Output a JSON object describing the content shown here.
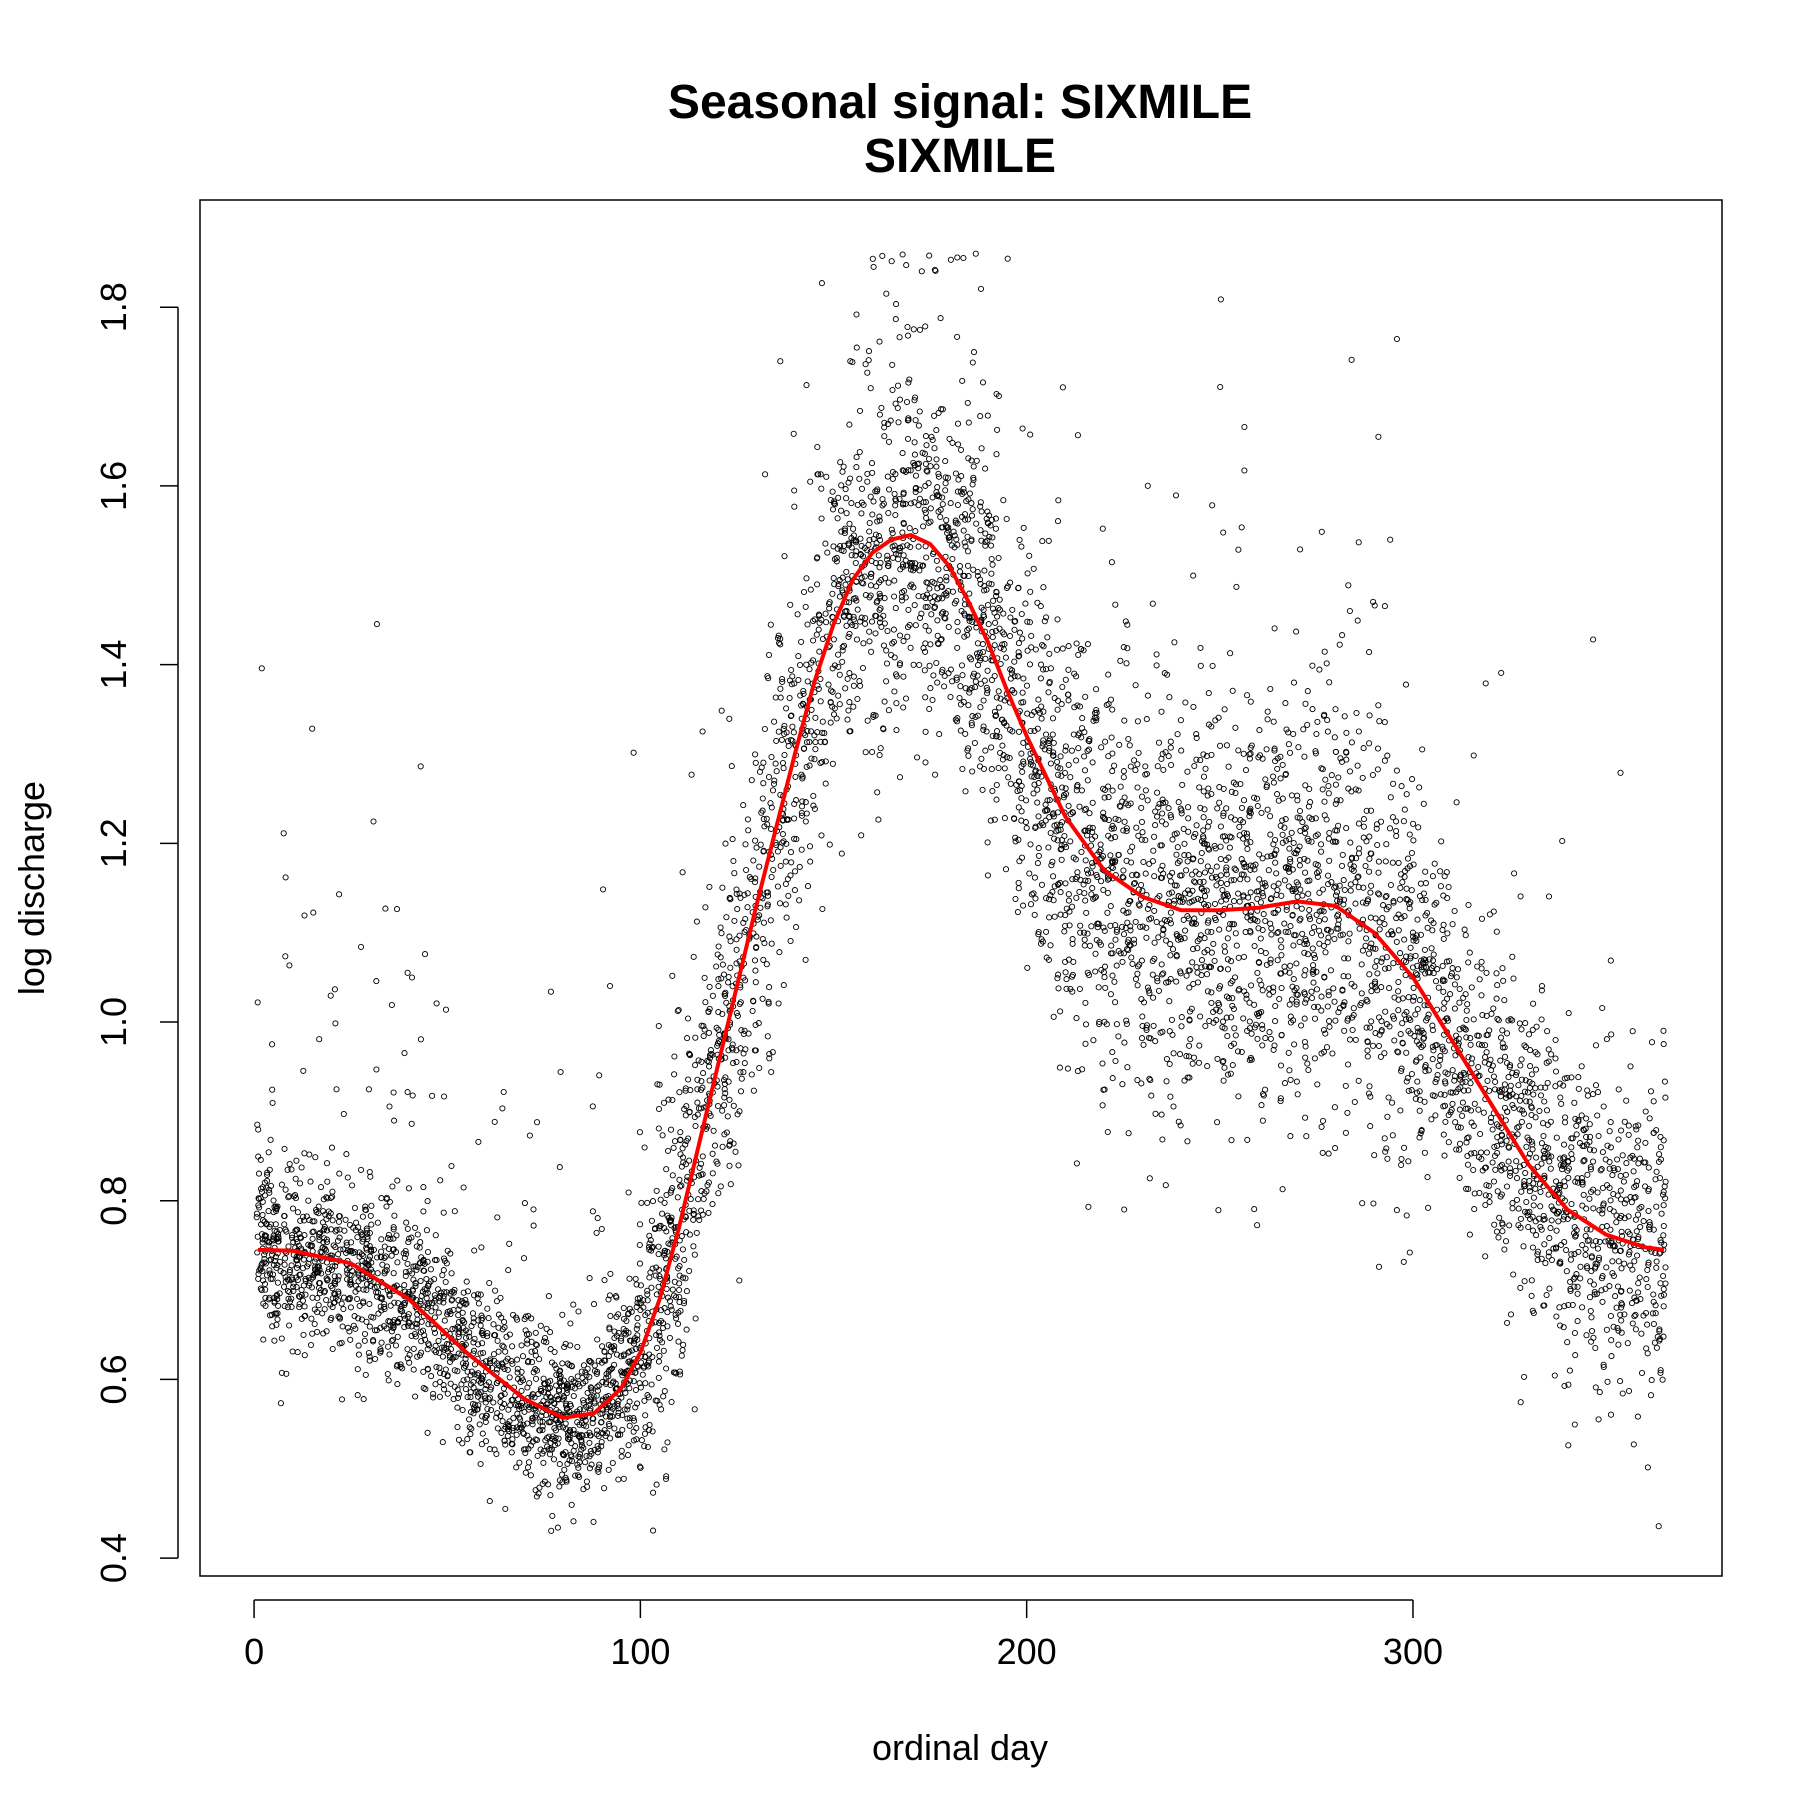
{
  "chart_data": {
    "type": "scatter",
    "title": "Seasonal signal: SIXMILE",
    "subtitle": "SIXMILE",
    "xlabel": "ordinal day",
    "ylabel": "log discharge",
    "xlim": [
      -14,
      380
    ],
    "ylim": [
      0.38,
      1.92
    ],
    "x_ticks": [
      0,
      100,
      200,
      300
    ],
    "x_tick_labels": [
      "0",
      "100",
      "200",
      "300"
    ],
    "y_ticks": [
      0.4,
      0.6,
      0.8,
      1.0,
      1.2,
      1.4,
      1.6,
      1.8
    ],
    "y_tick_labels": [
      "0.4",
      "0.6",
      "0.8",
      "1.0",
      "1.2",
      "1.4",
      "1.6",
      "1.8"
    ],
    "grid": false,
    "series": [
      {
        "kind": "points",
        "color": "#000000",
        "marker": "open-circle",
        "note_count_approx": 7000
      },
      {
        "kind": "smooth-line",
        "color": "#ff0000",
        "x": [
          1,
          10,
          25,
          40,
          55,
          70,
          80,
          88,
          95,
          100,
          105,
          110,
          115,
          120,
          125,
          130,
          135,
          140,
          145,
          150,
          155,
          160,
          165,
          170,
          175,
          180,
          185,
          190,
          195,
          200,
          210,
          220,
          230,
          240,
          250,
          260,
          270,
          280,
          290,
          300,
          310,
          320,
          330,
          340,
          350,
          360,
          365
        ],
        "y": [
          0.745,
          0.744,
          0.73,
          0.69,
          0.63,
          0.578,
          0.557,
          0.562,
          0.59,
          0.63,
          0.69,
          0.77,
          0.86,
          0.95,
          1.04,
          1.13,
          1.215,
          1.3,
          1.38,
          1.445,
          1.495,
          1.525,
          1.54,
          1.545,
          1.535,
          1.51,
          1.47,
          1.425,
          1.37,
          1.32,
          1.23,
          1.17,
          1.14,
          1.125,
          1.125,
          1.128,
          1.135,
          1.13,
          1.1,
          1.05,
          0.98,
          0.91,
          0.84,
          0.79,
          0.762,
          0.748,
          0.745
        ]
      }
    ]
  }
}
